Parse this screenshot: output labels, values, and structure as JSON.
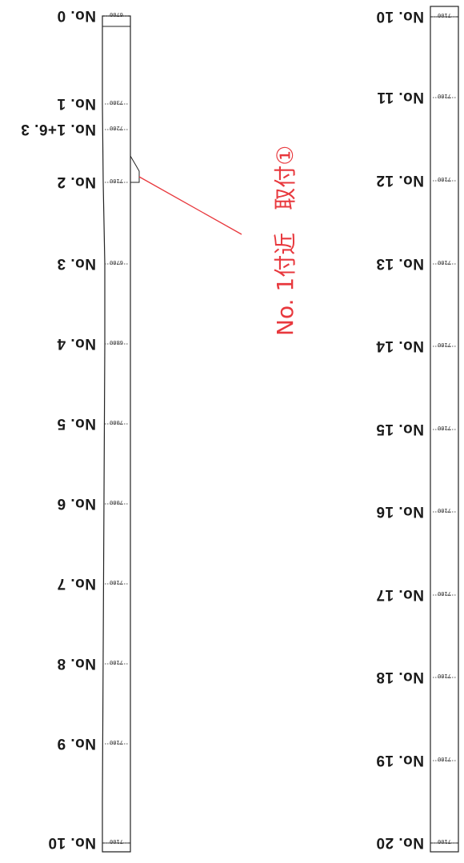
{
  "colors": {
    "outline": "#222222",
    "note": "#e8383d",
    "tick": "#555555"
  },
  "left_strip": {
    "stations": [
      {
        "label": "No. 0",
        "width": "6700"
      },
      {
        "label": "No. 1",
        "width": "7300"
      },
      {
        "label": "No. 1+6. 3",
        "width": "7200"
      },
      {
        "label": "No. 2",
        "width": "7100"
      },
      {
        "label": "No. 3",
        "width": "6700"
      },
      {
        "label": "No. 4",
        "width": "6800"
      },
      {
        "label": "No. 5",
        "width": "7000"
      },
      {
        "label": "No. 6",
        "width": "7000"
      },
      {
        "label": "No. 7",
        "width": "7100"
      },
      {
        "label": "No. 8",
        "width": "7100"
      },
      {
        "label": "No. 9",
        "width": "7100"
      },
      {
        "label": "No. 10",
        "width": "7100"
      }
    ]
  },
  "right_strip": {
    "stations": [
      {
        "label": "No. 10",
        "width": "7100"
      },
      {
        "label": "No. 11",
        "width": "7100"
      },
      {
        "label": "No. 12",
        "width": "7100"
      },
      {
        "label": "No. 13",
        "width": "7100"
      },
      {
        "label": "No. 14",
        "width": "7100"
      },
      {
        "label": "No. 15",
        "width": "7100"
      },
      {
        "label": "No. 16",
        "width": "7100"
      },
      {
        "label": "No. 17",
        "width": "7100"
      },
      {
        "label": "No. 18",
        "width": "7100"
      },
      {
        "label": "No. 19",
        "width": "7100"
      },
      {
        "label": "No. 20",
        "width": "7100"
      }
    ]
  },
  "annotation": {
    "text": "No. 1付近　取付①"
  }
}
